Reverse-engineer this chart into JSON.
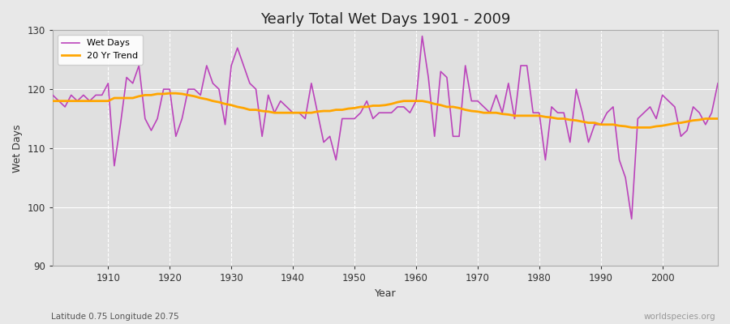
{
  "title": "Yearly Total Wet Days 1901 - 2009",
  "xlabel": "Year",
  "ylabel": "Wet Days",
  "subtitle": "Latitude 0.75 Longitude 20.75",
  "watermark": "worldspecies.org",
  "ylim": [
    90,
    130
  ],
  "xlim": [
    1901,
    2009
  ],
  "yticks": [
    90,
    100,
    110,
    120,
    130
  ],
  "xticks": [
    1910,
    1920,
    1930,
    1940,
    1950,
    1960,
    1970,
    1980,
    1990,
    2000
  ],
  "wet_days_color": "#bb44bb",
  "trend_color": "#FFA500",
  "bg_color": "#e8e8e8",
  "plot_bg_color": "#e0e0e0",
  "grid_color": "#ffffff",
  "wet_days": [
    119,
    118,
    117,
    119,
    118,
    119,
    118,
    119,
    119,
    121,
    107,
    114,
    122,
    121,
    124,
    115,
    113,
    115,
    120,
    120,
    112,
    115,
    120,
    120,
    119,
    124,
    121,
    120,
    114,
    124,
    127,
    124,
    121,
    120,
    112,
    119,
    116,
    118,
    117,
    116,
    116,
    115,
    121,
    116,
    111,
    112,
    108,
    115,
    115,
    115,
    116,
    118,
    115,
    116,
    116,
    116,
    117,
    117,
    116,
    118,
    129,
    122,
    112,
    123,
    122,
    112,
    112,
    124,
    118,
    118,
    117,
    116,
    119,
    116,
    121,
    115,
    124,
    124,
    116,
    116,
    108,
    117,
    116,
    116,
    111,
    120,
    116,
    111,
    114,
    114,
    116,
    117,
    108,
    105,
    98,
    115,
    116,
    117,
    115,
    119,
    118,
    117,
    112,
    113,
    117,
    116,
    114,
    116,
    121
  ],
  "trend_20yr": [
    118.0,
    118.0,
    118.0,
    118.0,
    118.0,
    118.0,
    118.0,
    118.0,
    118.0,
    118.0,
    118.5,
    118.5,
    118.5,
    118.5,
    118.8,
    119.0,
    119.0,
    119.2,
    119.2,
    119.3,
    119.3,
    119.2,
    119.0,
    118.8,
    118.5,
    118.3,
    118.0,
    117.8,
    117.5,
    117.3,
    117.0,
    116.8,
    116.5,
    116.5,
    116.3,
    116.2,
    116.0,
    116.0,
    116.0,
    116.0,
    116.0,
    116.0,
    116.0,
    116.2,
    116.3,
    116.3,
    116.5,
    116.5,
    116.7,
    116.8,
    117.0,
    117.0,
    117.2,
    117.2,
    117.3,
    117.5,
    117.8,
    118.0,
    118.0,
    118.0,
    118.0,
    117.8,
    117.5,
    117.3,
    117.0,
    117.0,
    116.8,
    116.5,
    116.3,
    116.2,
    116.0,
    116.0,
    116.0,
    115.8,
    115.7,
    115.5,
    115.5,
    115.5,
    115.5,
    115.5,
    115.3,
    115.2,
    115.0,
    115.0,
    114.8,
    114.7,
    114.5,
    114.3,
    114.3,
    114.0,
    114.0,
    114.0,
    113.8,
    113.7,
    113.5,
    113.5,
    113.5,
    113.5,
    113.7,
    113.8,
    114.0,
    114.2,
    114.3,
    114.5,
    114.7,
    114.8,
    115.0,
    115.0,
    115.0
  ]
}
